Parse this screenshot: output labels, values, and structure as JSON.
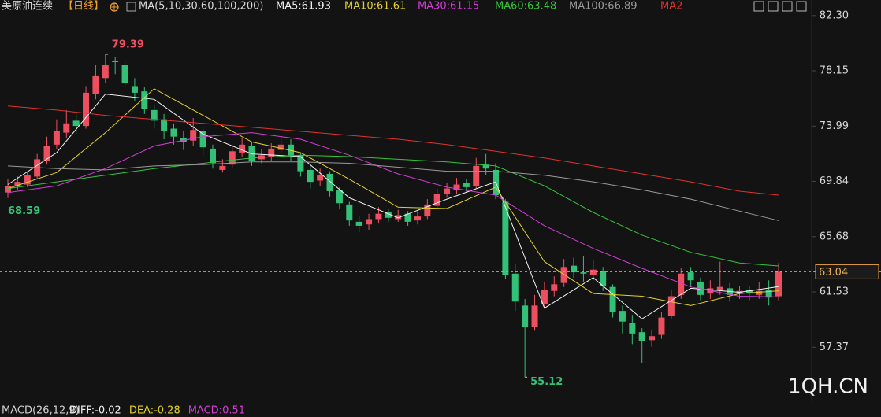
{
  "chart_data": {
    "type": "candlestick",
    "title": "美原油连续",
    "period": "【日线】",
    "ma_params": "MA(5,10,30,60,100,200)",
    "up_color": "#ee4f60",
    "down_color": "#33c177",
    "ylim": [
      53.6,
      83.0
    ],
    "yticks": [
      {
        "value": 82.3,
        "label": "82.30"
      },
      78.15,
      73.99,
      69.84,
      65.68,
      61.53,
      57.37
    ],
    "open": [
      69.0,
      69.5,
      69.6,
      70.2,
      71.4,
      72.6,
      73.5,
      74.4,
      74.0,
      76.4,
      77.6,
      78.9,
      78.6,
      77.0,
      76.6,
      75.2,
      74.5,
      73.8,
      73.1,
      72.9,
      73.6,
      72.3,
      70.7,
      71.1,
      72.0,
      72.5,
      71.5,
      71.7,
      72.2,
      72.6,
      71.8,
      70.7,
      69.9,
      70.4,
      69.2,
      68.1,
      66.8,
      66.6,
      67.0,
      67.5,
      67.0,
      67.4,
      66.9,
      67.2,
      68.0,
      68.9,
      69.2,
      69.7,
      69.5,
      71.1,
      70.7,
      68.3,
      62.9,
      60.5,
      58.9,
      60.6,
      61.6,
      62.2,
      63.5,
      63.0,
      62.8,
      63.1,
      61.9,
      60.1,
      59.2,
      58.5,
      57.9,
      58.3,
      59.7,
      61.3,
      63.0,
      62.3,
      61.4,
      61.7,
      61.8,
      61.4,
      61.7,
      61.3,
      61.7,
      61.2
    ],
    "high": [
      70.0,
      70.2,
      70.6,
      71.9,
      73.2,
      74.5,
      75.2,
      74.9,
      77.0,
      78.6,
      79.39,
      79.2,
      78.9,
      77.6,
      76.9,
      75.6,
      74.9,
      74.2,
      73.6,
      74.6,
      73.9,
      72.6,
      71.5,
      72.6,
      73.1,
      72.8,
      72.3,
      72.7,
      73.2,
      73.0,
      72.0,
      71.0,
      70.8,
      70.6,
      69.4,
      68.3,
      67.2,
      67.4,
      67.9,
      67.8,
      67.7,
      67.6,
      67.6,
      68.5,
      69.3,
      69.7,
      70.1,
      70.0,
      71.6,
      71.9,
      71.2,
      68.5,
      63.6,
      61.0,
      61.3,
      62.3,
      62.7,
      64.0,
      64.1,
      64.2,
      63.9,
      63.4,
      62.1,
      60.5,
      59.8,
      58.8,
      58.7,
      60.0,
      61.7,
      63.3,
      63.4,
      62.6,
      62.4,
      63.8,
      62.2,
      62.0,
      62.0,
      62.3,
      62.4,
      63.7
    ],
    "low": [
      68.59,
      69.2,
      69.4,
      70.0,
      71.1,
      72.3,
      73.1,
      73.4,
      73.8,
      76.0,
      77.2,
      77.9,
      76.9,
      75.9,
      74.9,
      73.8,
      73.0,
      72.6,
      72.2,
      72.5,
      71.8,
      70.8,
      70.5,
      70.9,
      71.7,
      71.0,
      71.2,
      71.4,
      71.9,
      71.4,
      70.2,
      69.3,
      69.5,
      68.7,
      67.8,
      66.5,
      66.0,
      66.2,
      66.7,
      66.8,
      66.8,
      66.5,
      66.6,
      67.0,
      67.8,
      68.6,
      68.9,
      69.0,
      69.3,
      70.3,
      68.5,
      62.5,
      60.1,
      55.12,
      58.6,
      60.3,
      61.2,
      61.9,
      62.6,
      62.3,
      62.4,
      61.6,
      59.6,
      58.4,
      57.6,
      56.2,
      57.4,
      58.0,
      59.5,
      61.0,
      61.9,
      60.9,
      61.0,
      61.3,
      60.8,
      61.0,
      60.9,
      61.0,
      60.5,
      60.9
    ],
    "close": [
      69.5,
      69.8,
      70.3,
      71.5,
      72.5,
      73.6,
      74.2,
      74.0,
      76.5,
      77.8,
      78.6,
      78.8,
      77.2,
      76.5,
      75.3,
      74.4,
      73.6,
      73.2,
      72.8,
      73.7,
      72.4,
      71.2,
      71.0,
      72.1,
      72.6,
      71.4,
      71.8,
      72.3,
      72.6,
      71.8,
      70.6,
      69.8,
      70.3,
      69.1,
      68.2,
      66.9,
      66.5,
      67.0,
      67.4,
      67.1,
      67.3,
      66.8,
      67.2,
      68.1,
      68.9,
      69.3,
      69.6,
      69.4,
      71.0,
      70.8,
      68.8,
      62.8,
      60.8,
      58.9,
      60.5,
      61.7,
      62.1,
      63.4,
      63.0,
      62.9,
      63.2,
      62.0,
      60.0,
      59.3,
      58.4,
      57.8,
      58.2,
      59.6,
      61.2,
      62.9,
      62.4,
      61.3,
      61.8,
      61.9,
      61.3,
      61.6,
      61.4,
      61.6,
      61.1,
      63.04
    ],
    "ma_x": [
      0,
      5,
      10,
      15,
      20,
      25,
      30,
      35,
      40,
      45,
      50,
      55,
      60,
      65,
      70,
      75,
      79
    ],
    "ma_series": [
      {
        "name": "MA5:61.93",
        "color": "#f2f2f2",
        "values": [
          69.6,
          72.0,
          76.4,
          76.0,
          73.4,
          71.9,
          71.7,
          68.6,
          67.1,
          68.5,
          69.8,
          60.3,
          62.6,
          59.5,
          61.8,
          61.5,
          61.93
        ]
      },
      {
        "name": "MA10:61.61",
        "color": "#e2d228",
        "values": [
          69.3,
          70.5,
          73.5,
          76.8,
          74.8,
          72.8,
          72.0,
          70.0,
          67.9,
          67.8,
          69.4,
          63.8,
          61.4,
          61.2,
          60.5,
          61.4,
          61.61
        ]
      },
      {
        "name": "MA30:61.15",
        "color": "#d23ed6",
        "values": [
          69.0,
          69.5,
          70.8,
          72.5,
          73.2,
          73.5,
          73.0,
          71.8,
          70.4,
          69.4,
          68.8,
          66.5,
          64.8,
          63.3,
          61.9,
          61.2,
          61.15
        ]
      },
      {
        "name": "MA60:63.48",
        "color": "#35c53a",
        "values": [
          69.3,
          69.8,
          70.3,
          70.8,
          71.2,
          71.6,
          71.8,
          71.7,
          71.5,
          71.3,
          71.0,
          69.5,
          67.5,
          65.8,
          64.5,
          63.7,
          63.48
        ]
      },
      {
        "name": "MA100:66.89",
        "color": "#9a9a9a",
        "values": [
          71.0,
          70.8,
          70.7,
          71.0,
          71.1,
          71.3,
          71.3,
          71.2,
          70.9,
          70.6,
          70.6,
          70.3,
          69.8,
          69.2,
          68.5,
          67.6,
          66.89
        ]
      },
      {
        "name": "MA2",
        "color": "#e0322f",
        "values": [
          75.5,
          75.2,
          74.8,
          74.5,
          74.2,
          73.9,
          73.6,
          73.3,
          73.0,
          72.6,
          72.1,
          71.6,
          71.0,
          70.4,
          69.8,
          69.1,
          68.8
        ]
      }
    ],
    "macd_title": "MACD(26,12,9)",
    "macd_labels": [
      {
        "text": "DIFF:-0.02",
        "color": "#f2f2f2"
      },
      {
        "text": "DEA:-0.28",
        "color": "#e2d228"
      },
      {
        "text": "MACD:0.51",
        "color": "#d23ed6"
      }
    ],
    "watermark": "1QH.CN"
  }
}
